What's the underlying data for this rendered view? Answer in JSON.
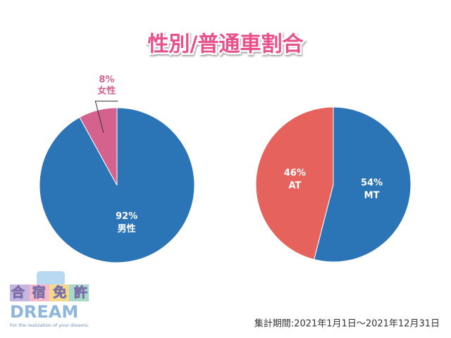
{
  "title": "性別/普通車割合",
  "chart_data": [
    {
      "type": "pie",
      "categories": [
        "男性",
        "女性"
      ],
      "values": [
        92,
        8
      ],
      "value_labels": [
        "92%",
        "8%"
      ],
      "colors": [
        "#2b74b6",
        "#d5628d"
      ]
    },
    {
      "type": "pie",
      "categories": [
        "MT",
        "AT"
      ],
      "values": [
        54,
        46
      ],
      "value_labels": [
        "54%",
        "46%"
      ],
      "colors": [
        "#2b74b6",
        "#e5635c"
      ]
    }
  ],
  "logo": {
    "name": "合宿免許",
    "brand": "DREAM",
    "tagline": "For the realization of your dreams."
  },
  "footnote": "集計期間:2021年1月1日〜2021年12月31日"
}
